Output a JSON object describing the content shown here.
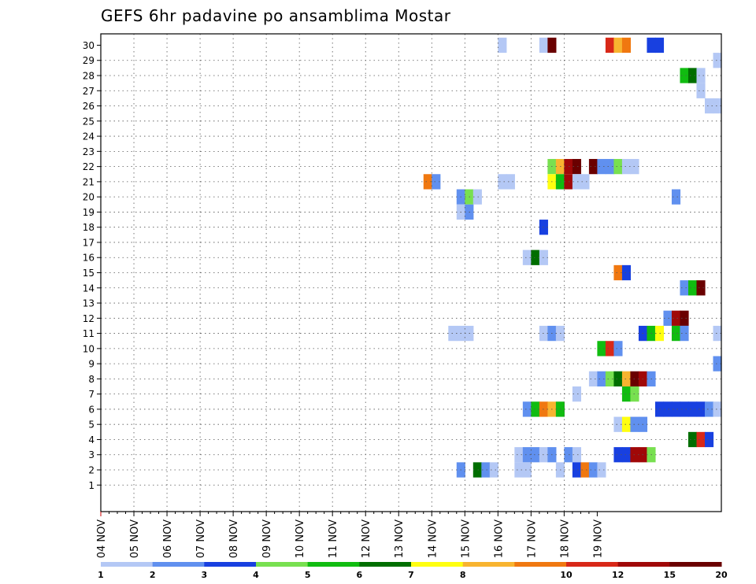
{
  "chart_data": {
    "type": "heatmap",
    "title": "GEFS 6hr padavine po ansamblima Mostar",
    "x_labels": [
      "04 NOV",
      "05 NOV",
      "06 NOV",
      "07 NOV",
      "08 NOV",
      "09 NOV",
      "10 NOV",
      "11 NOV",
      "12 NOV",
      "13 NOV",
      "14 NOV",
      "15 NOV",
      "16 NOV",
      "17 NOV",
      "18 NOV",
      "19 NOV"
    ],
    "y_labels": [
      "1",
      "2",
      "3",
      "4",
      "5",
      "6",
      "7",
      "8",
      "9",
      "10",
      "11",
      "12",
      "13",
      "14",
      "15",
      "16",
      "17",
      "18",
      "19",
      "20",
      "21",
      "22",
      "23",
      "24",
      "25",
      "26",
      "27",
      "28",
      "29",
      "30"
    ],
    "x_unit": "6-hour step from 04 NOV",
    "y_unit": "ensemble member",
    "grid": true,
    "colorbar": {
      "colors": [
        "#b4c8f5",
        "#6090ef",
        "#1840e0",
        "#78e050",
        "#10bc10",
        "#006e00",
        "#ffff10",
        "#f8b430",
        "#f07810",
        "#d82818",
        "#a00808",
        "#6a0000"
      ],
      "tick_labels": [
        "1",
        "2",
        "3",
        "4",
        "5",
        "6",
        "7",
        "8",
        "10",
        "12",
        "15",
        "20"
      ],
      "label_index": [
        0,
        1,
        2,
        3,
        4,
        5,
        6,
        7,
        9,
        10,
        11,
        12
      ]
    },
    "cells": [
      [
        30,
        48,
        0
      ],
      [
        30,
        53,
        0
      ],
      [
        30,
        54,
        11
      ],
      [
        30,
        61,
        9
      ],
      [
        30,
        62,
        7
      ],
      [
        30,
        63,
        8
      ],
      [
        30,
        66,
        2
      ],
      [
        30,
        67,
        2
      ],
      [
        29,
        74,
        0
      ],
      [
        28,
        70,
        4
      ],
      [
        28,
        71,
        5
      ],
      [
        28,
        72,
        0
      ],
      [
        27,
        72,
        0
      ],
      [
        26,
        73,
        0
      ],
      [
        26,
        74,
        0
      ],
      [
        22,
        54,
        3
      ],
      [
        22,
        55,
        7
      ],
      [
        22,
        56,
        10
      ],
      [
        22,
        57,
        11
      ],
      [
        22,
        59,
        11
      ],
      [
        22,
        60,
        1
      ],
      [
        22,
        61,
        1
      ],
      [
        22,
        62,
        3
      ],
      [
        22,
        63,
        0
      ],
      [
        22,
        64,
        0
      ],
      [
        21,
        39,
        8
      ],
      [
        21,
        40,
        1
      ],
      [
        21,
        48,
        0
      ],
      [
        21,
        49,
        0
      ],
      [
        21,
        54,
        6
      ],
      [
        21,
        55,
        4
      ],
      [
        21,
        56,
        10
      ],
      [
        21,
        57,
        0
      ],
      [
        21,
        58,
        0
      ],
      [
        20,
        43,
        1
      ],
      [
        20,
        44,
        3
      ],
      [
        20,
        45,
        0
      ],
      [
        20,
        69,
        1
      ],
      [
        19,
        43,
        0
      ],
      [
        19,
        44,
        1
      ],
      [
        18,
        53,
        2
      ],
      [
        16,
        51,
        0
      ],
      [
        16,
        52,
        5
      ],
      [
        16,
        53,
        0
      ],
      [
        15,
        62,
        8
      ],
      [
        15,
        63,
        2
      ],
      [
        14,
        70,
        1
      ],
      [
        14,
        71,
        4
      ],
      [
        14,
        72,
        11
      ],
      [
        12,
        68,
        1
      ],
      [
        12,
        69,
        10
      ],
      [
        12,
        70,
        11
      ],
      [
        11,
        42,
        0
      ],
      [
        11,
        43,
        0
      ],
      [
        11,
        44,
        0
      ],
      [
        11,
        53,
        0
      ],
      [
        11,
        54,
        1
      ],
      [
        11,
        55,
        0
      ],
      [
        11,
        65,
        2
      ],
      [
        11,
        66,
        4
      ],
      [
        11,
        67,
        6
      ],
      [
        11,
        69,
        4
      ],
      [
        11,
        70,
        1
      ],
      [
        11,
        74,
        0
      ],
      [
        10,
        60,
        4
      ],
      [
        10,
        61,
        9
      ],
      [
        10,
        62,
        1
      ],
      [
        9,
        74,
        1
      ],
      [
        8,
        59,
        0
      ],
      [
        8,
        60,
        1
      ],
      [
        8,
        61,
        3
      ],
      [
        8,
        62,
        5
      ],
      [
        8,
        63,
        7
      ],
      [
        8,
        64,
        11
      ],
      [
        8,
        65,
        10
      ],
      [
        8,
        66,
        1
      ],
      [
        7,
        57,
        0
      ],
      [
        7,
        63,
        4
      ],
      [
        7,
        64,
        3
      ],
      [
        6,
        51,
        1
      ],
      [
        6,
        52,
        4
      ],
      [
        6,
        53,
        8
      ],
      [
        6,
        54,
        7
      ],
      [
        6,
        55,
        4
      ],
      [
        6,
        67,
        2
      ],
      [
        6,
        68,
        2
      ],
      [
        6,
        69,
        2
      ],
      [
        6,
        70,
        2
      ],
      [
        6,
        71,
        2
      ],
      [
        6,
        72,
        2
      ],
      [
        6,
        73,
        1
      ],
      [
        6,
        74,
        0
      ],
      [
        5,
        62,
        0
      ],
      [
        5,
        63,
        6
      ],
      [
        5,
        64,
        1
      ],
      [
        5,
        65,
        1
      ],
      [
        4,
        71,
        5
      ],
      [
        4,
        72,
        9
      ],
      [
        4,
        73,
        2
      ],
      [
        3,
        50,
        0
      ],
      [
        3,
        51,
        1
      ],
      [
        3,
        52,
        1
      ],
      [
        3,
        53,
        0
      ],
      [
        3,
        54,
        1
      ],
      [
        3,
        56,
        1
      ],
      [
        3,
        57,
        0
      ],
      [
        3,
        62,
        2
      ],
      [
        3,
        63,
        2
      ],
      [
        3,
        64,
        10
      ],
      [
        3,
        65,
        10
      ],
      [
        3,
        66,
        3
      ],
      [
        2,
        43,
        1
      ],
      [
        2,
        45,
        5
      ],
      [
        2,
        46,
        1
      ],
      [
        2,
        47,
        0
      ],
      [
        2,
        50,
        0
      ],
      [
        2,
        51,
        0
      ],
      [
        2,
        55,
        0
      ],
      [
        2,
        57,
        2
      ],
      [
        2,
        58,
        8
      ],
      [
        2,
        59,
        1
      ],
      [
        2,
        60,
        0
      ]
    ]
  }
}
